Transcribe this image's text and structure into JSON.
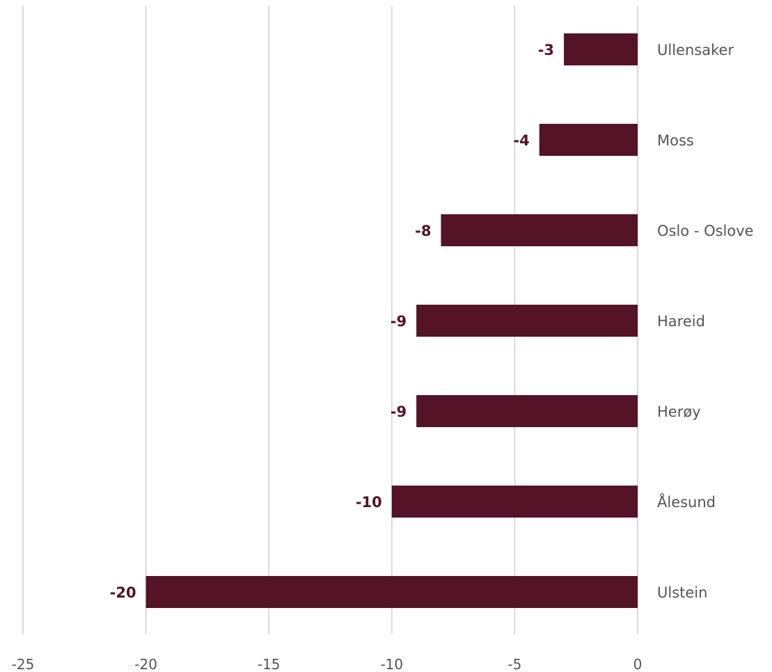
{
  "chart_data": {
    "type": "bar",
    "orientation": "horizontal",
    "categories": [
      "Ullensaker",
      "Moss",
      "Oslo - Oslove",
      "Hareid",
      "Herøy",
      "Ålesund",
      "Ulstein"
    ],
    "values": [
      -3,
      -4,
      -8,
      -9,
      -9,
      -10,
      -20
    ],
    "data_labels": [
      "-3",
      "-4",
      "-8",
      "-9",
      "-9",
      "-10",
      "-20"
    ],
    "x_ticks": [
      -25,
      -20,
      -15,
      -10,
      -5,
      0
    ],
    "x_tick_labels": [
      "-25",
      "-20",
      "-15",
      "-10",
      "-5",
      "0"
    ],
    "xlim": [
      -25,
      0
    ],
    "title": "",
    "xlabel": "",
    "ylabel": "",
    "grid": "vertical",
    "category_label_position": "right",
    "legend": "none",
    "bar_color": "#541326",
    "label_color": "#541326",
    "grid_color": "#d9d9d9"
  }
}
